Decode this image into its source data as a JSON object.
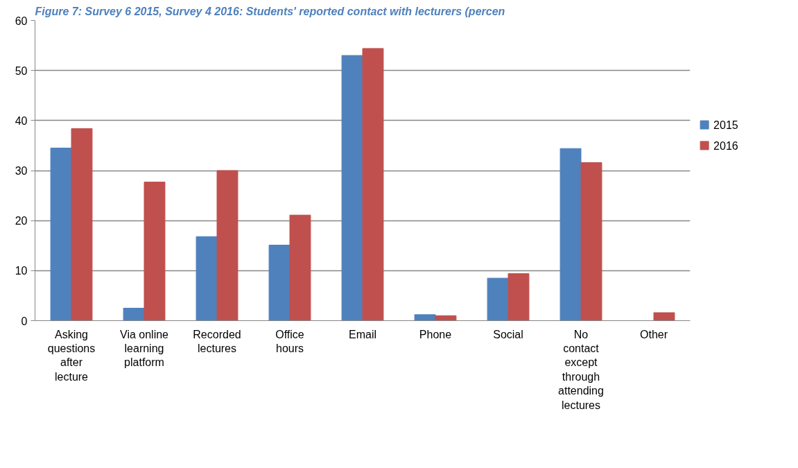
{
  "chart_data": {
    "type": "bar",
    "title": "Figure 7: Survey 6 2015, Survey 4 2016: Students' reported contact with lecturers (percen",
    "categories": [
      "Asking\nquestions\nafter\nlecture",
      "Via online\nlearning\nplatform",
      "Recorded\nlectures",
      "Office\nhours",
      "Email",
      "Phone",
      "Social",
      "No\ncontact\nexcept\nthrough\nattending\nlectures",
      "Other"
    ],
    "series": [
      {
        "name": "2015",
        "color": "#4f81bd",
        "values": [
          34.5,
          2.5,
          16.8,
          15.1,
          53.0,
          1.2,
          8.5,
          34.4,
          0
        ]
      },
      {
        "name": "2016",
        "color": "#c0504d",
        "values": [
          38.4,
          27.7,
          30.0,
          21.1,
          54.4,
          1.0,
          9.4,
          31.6,
          1.6
        ]
      }
    ],
    "ylim": [
      0,
      60
    ],
    "yticks": [
      0,
      10,
      20,
      30,
      40,
      50,
      60
    ],
    "grid": "y",
    "legend": "right"
  }
}
